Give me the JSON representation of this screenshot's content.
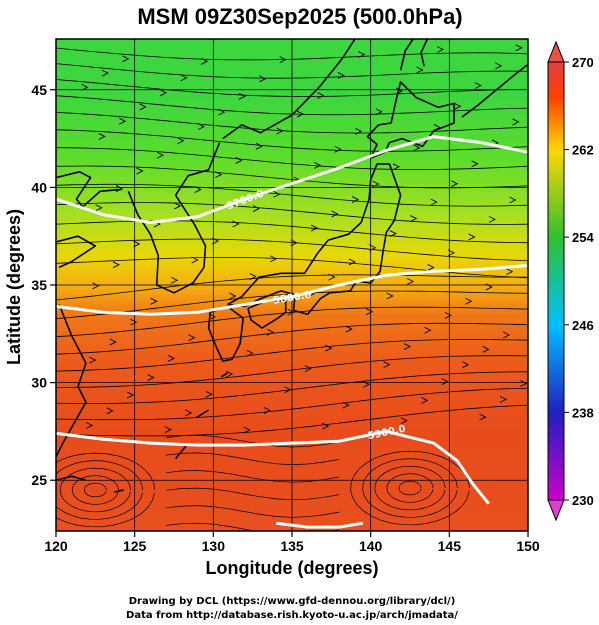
{
  "title": "MSM 09Z30Sep2025 (500.0hPa)",
  "xlabel": "Longitude (degrees)",
  "ylabel": "Latitude  (degrees)",
  "credit": {
    "line1": "Drawing by DCL (https://www.gfd-dennou.org/library/dcl/)",
    "line2": "Data from http://database.rish.kyoto-u.ac.jp/arch/jmadata/"
  },
  "chart_data": {
    "type": "heatmap",
    "xlim": [
      120,
      150
    ],
    "ylim": [
      22.4,
      47.6
    ],
    "xticks": [
      "120",
      "125",
      "130",
      "135",
      "140",
      "145",
      "150"
    ],
    "yticks": [
      "25",
      "30",
      "35",
      "40",
      "45"
    ],
    "grid": true,
    "colorbar": {
      "min": 230,
      "max": 270,
      "tick_values": [
        230,
        238,
        246,
        254,
        262,
        270
      ],
      "tick_labels": [
        "230",
        "238",
        "246",
        "254",
        "262",
        "270"
      ],
      "colors": [
        "#cc00cc",
        "#2020c0",
        "#00c0ff",
        "#30c030",
        "#ffd700",
        "#ff4000",
        "#e04040"
      ]
    },
    "temperature_field": {
      "note_lat_values": [
        47,
        44,
        41,
        38,
        35,
        32,
        29,
        26,
        23
      ],
      "values": [
        257,
        257.5,
        258.5,
        261,
        263,
        266,
        267,
        267.5,
        267
      ]
    },
    "contours": [
      {
        "label": "5700.0",
        "lon": [
          120,
          123,
          126,
          129,
          132,
          135,
          138,
          141,
          144,
          147,
          150
        ],
        "lat": [
          39.4,
          38.6,
          38.2,
          38.5,
          39.4,
          40.2,
          41.0,
          41.9,
          42.6,
          42.3,
          41.8
        ]
      },
      {
        "label": "5800.0",
        "lon": [
          120,
          123,
          126,
          129,
          132,
          135,
          138,
          141,
          144,
          147,
          150
        ],
        "lat": [
          33.9,
          33.6,
          33.5,
          33.6,
          34.0,
          34.4,
          35.0,
          35.5,
          35.7,
          35.8,
          36.0
        ]
      },
      {
        "label": "5900.0",
        "lon": [
          120,
          123,
          126,
          129,
          132,
          135,
          138,
          141,
          144,
          145.5,
          146.5,
          147.5
        ],
        "lat": [
          27.4,
          27.1,
          26.9,
          26.8,
          26.8,
          26.9,
          27.0,
          27.5,
          26.9,
          26.0,
          24.8,
          23.8
        ]
      },
      {
        "label": "",
        "lon": [
          134,
          136,
          138,
          139.5
        ],
        "lat": [
          22.8,
          22.6,
          22.6,
          22.8
        ]
      }
    ]
  }
}
